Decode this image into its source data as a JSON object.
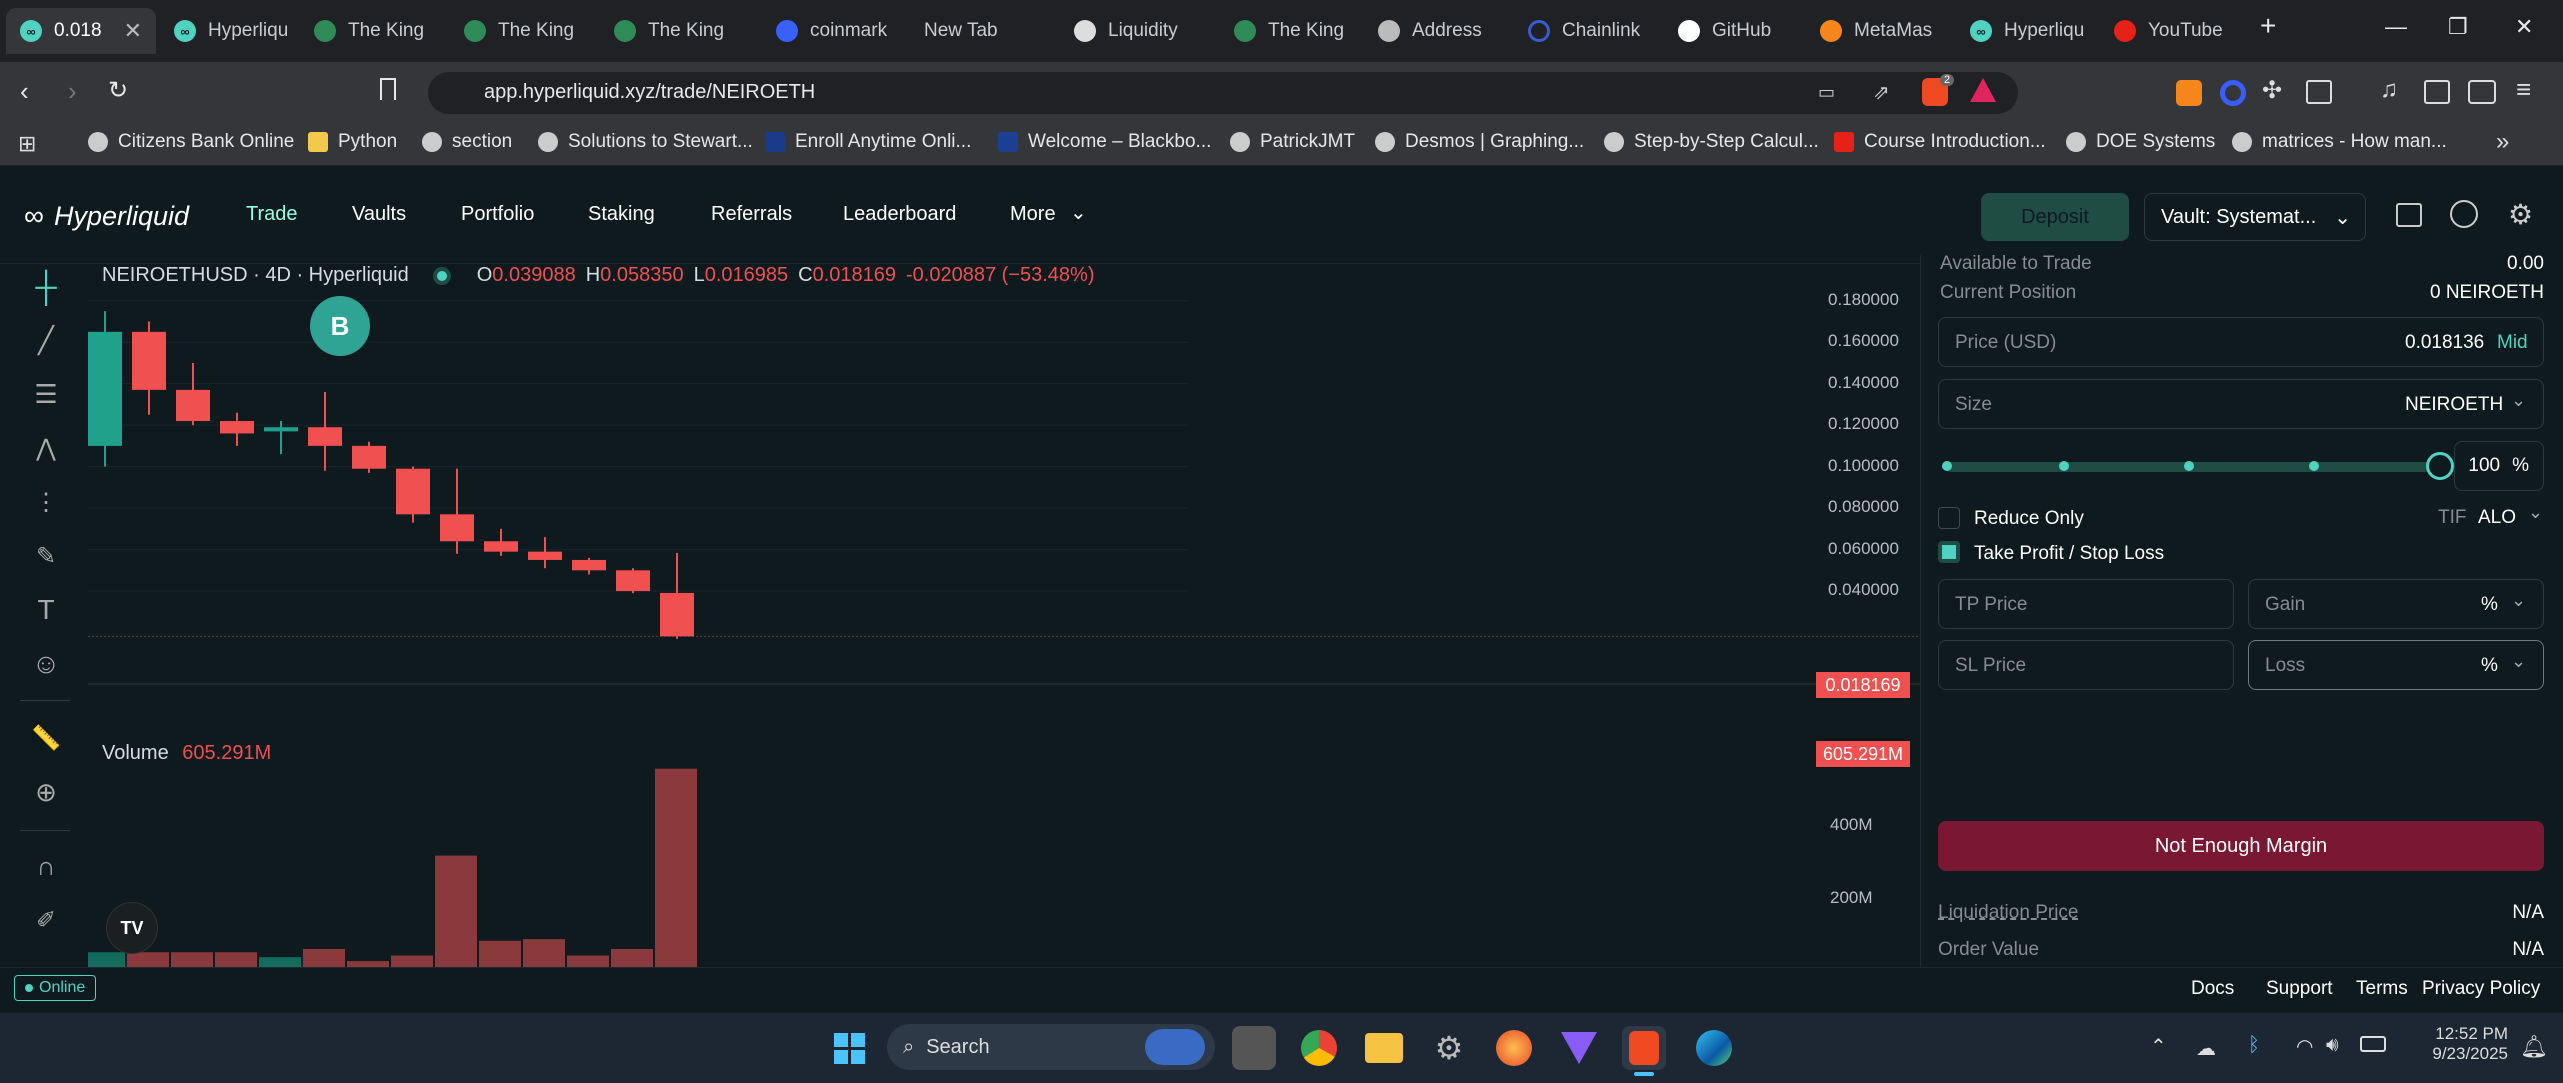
{
  "browser": {
    "tabs": [
      {
        "label": "0.018",
        "icon": "hyperliquid-icon",
        "active": true
      },
      {
        "label": "Hyperliqu",
        "icon": "hyperliquid-icon"
      },
      {
        "label": "The King",
        "icon": "kingfisher-icon"
      },
      {
        "label": "The King",
        "icon": "kingfisher-icon"
      },
      {
        "label": "The King",
        "icon": "kingfisher-icon"
      },
      {
        "label": "coinmark",
        "icon": "coinmarketcap-icon"
      },
      {
        "label": "New Tab",
        "icon": ""
      },
      {
        "label": "Liquidity",
        "icon": "liquidity-icon"
      },
      {
        "label": "The King",
        "icon": "kingfisher-icon"
      },
      {
        "label": "Address",
        "icon": "address-icon"
      },
      {
        "label": "Chainlink",
        "icon": "chainlink-icon"
      },
      {
        "label": "GitHub",
        "icon": "github-icon"
      },
      {
        "label": "MetaMas",
        "icon": "metamask-icon"
      },
      {
        "label": "Hyperliqu",
        "icon": "hyperliquid-icon"
      },
      {
        "label": "YouTube",
        "icon": "youtube-icon"
      }
    ],
    "url": "app.hyperliquid.xyz/trade/NEIROETH",
    "brave_badge": "2",
    "bookmarks": [
      "Citizens Bank Online",
      "Python",
      "section",
      "Solutions to Stewart...",
      "Enroll Anytime Onli...",
      "Welcome – Blackbo...",
      "PatrickJMT",
      "Desmos | Graphing...",
      "Step-by-Step Calcul...",
      "Course Introduction...",
      "DOE Systems",
      "matrices - How man..."
    ]
  },
  "app": {
    "logo": "Hyperliquid",
    "nav": [
      "Trade",
      "Vaults",
      "Portfolio",
      "Staking",
      "Referrals",
      "Leaderboard",
      "More"
    ],
    "deposit_label": "Deposit",
    "vault_label": "Vault: Systemat..."
  },
  "chart": {
    "symbol_line": "NEIROETHUSD · 4D · Hyperliquid",
    "o_label": "O",
    "o_val": "0.039088",
    "h_label": "H",
    "h_val": "0.058350",
    "l_label": "L",
    "l_val": "0.016985",
    "c_label": "C",
    "c_val": "0.018169",
    "change": "-0.020887 (−53.48%)",
    "badge_b": "B",
    "price_ticks": [
      "0.180000",
      "0.160000",
      "0.140000",
      "0.120000",
      "0.100000",
      "0.080000",
      "0.060000",
      "0.040000"
    ],
    "last_price_tag": "0.018169",
    "volume_label": "Volume",
    "volume_val": "605.291M",
    "volume_tag": "605.291M",
    "volume_ticks": [
      "400M",
      "200M"
    ],
    "tv_logo": "TV"
  },
  "chart_data": {
    "type": "candlestick",
    "y_range": [
      0,
      0.19
    ],
    "candles": [
      {
        "o": 0.11,
        "h": 0.175,
        "l": 0.1,
        "c": 0.165,
        "up": true
      },
      {
        "o": 0.165,
        "h": 0.17,
        "l": 0.125,
        "c": 0.137,
        "up": false
      },
      {
        "o": 0.137,
        "h": 0.15,
        "l": 0.12,
        "c": 0.122,
        "up": false
      },
      {
        "o": 0.122,
        "h": 0.126,
        "l": 0.11,
        "c": 0.116,
        "up": false
      },
      {
        "o": 0.117,
        "h": 0.122,
        "l": 0.106,
        "c": 0.119,
        "up": true
      },
      {
        "o": 0.119,
        "h": 0.136,
        "l": 0.098,
        "c": 0.11,
        "up": false
      },
      {
        "o": 0.11,
        "h": 0.112,
        "l": 0.097,
        "c": 0.099,
        "up": false
      },
      {
        "o": 0.099,
        "h": 0.1,
        "l": 0.073,
        "c": 0.077,
        "up": false
      },
      {
        "o": 0.077,
        "h": 0.099,
        "l": 0.058,
        "c": 0.064,
        "up": false
      },
      {
        "o": 0.064,
        "h": 0.07,
        "l": 0.057,
        "c": 0.059,
        "up": false
      },
      {
        "o": 0.059,
        "h": 0.066,
        "l": 0.051,
        "c": 0.055,
        "up": false
      },
      {
        "o": 0.055,
        "h": 0.056,
        "l": 0.048,
        "c": 0.05,
        "up": false
      },
      {
        "o": 0.05,
        "h": 0.051,
        "l": 0.039,
        "c": 0.04,
        "up": false
      },
      {
        "o": 0.039088,
        "h": 0.05835,
        "l": 0.016985,
        "c": 0.018169,
        "up": false
      }
    ],
    "volume_range": [
      0,
      650
    ],
    "volumes": [
      45,
      45,
      45,
      45,
      30,
      55,
      18,
      35,
      340,
      80,
      85,
      35,
      55,
      605.291
    ]
  },
  "order": {
    "available_label": "Available to Trade",
    "available_val": "0.00",
    "position_label": "Current Position",
    "position_val": "0 NEIROETH",
    "price_label": "Price (USD)",
    "price_val": "0.018136",
    "mid_label": "Mid",
    "size_label": "Size",
    "size_unit": "NEIROETH",
    "slider_percent": 100,
    "slider_percent_text": "100",
    "percent_sign": "%",
    "reduce_only": "Reduce Only",
    "tif_label": "TIF",
    "tif_val": "ALO",
    "tpsl_label": "Take Profit / Stop Loss",
    "tp_placeholder": "TP Price",
    "gain_placeholder": "Gain",
    "sl_placeholder": "SL Price",
    "loss_placeholder": "Loss",
    "submit_label": "Not Enough Margin",
    "liq_label": "Liquidation Price",
    "liq_val": "N/A",
    "order_value_label": "Order Value",
    "order_value_val": "N/A"
  },
  "footer": {
    "status": "Online",
    "links": [
      "Docs",
      "Support",
      "Terms",
      "Privacy Policy"
    ]
  },
  "taskbar": {
    "search_label": "Search",
    "time": "12:52 PM",
    "date": "9/23/2025"
  },
  "colors": {
    "accent": "#50d2c1",
    "down": "#f0504f",
    "up": "#1fa18b",
    "submit_bg": "#7a1732"
  }
}
